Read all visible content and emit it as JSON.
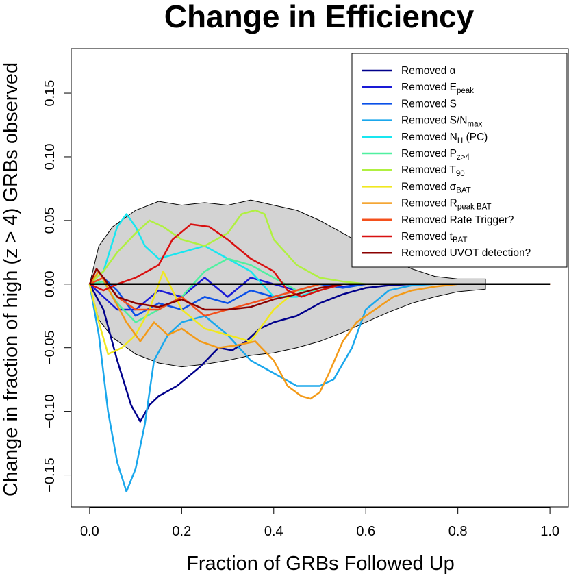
{
  "chart_data": {
    "type": "line",
    "title": "Change in Efficiency",
    "xlabel": "Fraction of GRBs Followed Up",
    "ylabel": "Change in fraction of high (z > 4) GRBs observed",
    "xlim": [
      -0.04,
      1.04
    ],
    "ylim": [
      -0.175,
      0.185
    ],
    "x_ticks": [
      0.0,
      0.2,
      0.4,
      0.6,
      0.8,
      1.0
    ],
    "x_tick_labels": [
      "0.0",
      "0.2",
      "0.4",
      "0.6",
      "0.8",
      "1.0"
    ],
    "y_ticks": [
      -0.15,
      -0.1,
      -0.05,
      0.0,
      0.05,
      0.1,
      0.15
    ],
    "y_tick_labels": [
      "−0.15",
      "−0.10",
      "−0.05",
      "0.00",
      "0.05",
      "0.10",
      "0.15"
    ],
    "grid": false,
    "legend_position": "top-right",
    "band": {
      "color": "#d3d3d3",
      "x": [
        0.0,
        0.02,
        0.05,
        0.1,
        0.15,
        0.2,
        0.25,
        0.3,
        0.35,
        0.4,
        0.45,
        0.5,
        0.55,
        0.6,
        0.65,
        0.7,
        0.75,
        0.8,
        0.86
      ],
      "upper": [
        0.0,
        0.03,
        0.045,
        0.058,
        0.065,
        0.062,
        0.064,
        0.062,
        0.066,
        0.062,
        0.058,
        0.05,
        0.04,
        0.03,
        0.02,
        0.012,
        0.006,
        0.004,
        0.004
      ],
      "lower": [
        0.0,
        -0.028,
        -0.042,
        -0.055,
        -0.062,
        -0.065,
        -0.063,
        -0.06,
        -0.056,
        -0.054,
        -0.05,
        -0.045,
        -0.038,
        -0.03,
        -0.022,
        -0.015,
        -0.01,
        -0.006,
        -0.004
      ]
    },
    "series": [
      {
        "name": "Removed α",
        "color": "#00008b",
        "x": [
          0.0,
          0.03,
          0.06,
          0.09,
          0.11,
          0.13,
          0.15,
          0.19,
          0.24,
          0.28,
          0.31,
          0.34,
          0.37,
          0.4,
          0.45,
          0.5,
          0.55,
          0.6,
          0.65,
          0.7,
          0.8,
          1.0
        ],
        "y": [
          0.0,
          -0.02,
          -0.06,
          -0.095,
          -0.108,
          -0.095,
          -0.088,
          -0.08,
          -0.065,
          -0.05,
          -0.052,
          -0.045,
          -0.035,
          -0.03,
          -0.025,
          -0.015,
          -0.008,
          -0.003,
          -0.001,
          0.0,
          0.0,
          0.0
        ]
      },
      {
        "name": "Removed E",
        "sub": "peak",
        "color": "#1a1ad6",
        "x": [
          0.0,
          0.03,
          0.06,
          0.1,
          0.15,
          0.2,
          0.25,
          0.3,
          0.35,
          0.4,
          0.45,
          0.5,
          0.55,
          0.6,
          0.7,
          0.8,
          1.0
        ],
        "y": [
          0.0,
          -0.01,
          -0.02,
          -0.02,
          -0.005,
          -0.01,
          0.005,
          -0.01,
          0.005,
          0.0,
          -0.005,
          0.0,
          -0.002,
          0.0,
          0.0,
          0.0,
          0.0
        ]
      },
      {
        "name": "Removed S",
        "color": "#0a50e8",
        "x": [
          0.0,
          0.03,
          0.06,
          0.1,
          0.15,
          0.2,
          0.25,
          0.3,
          0.35,
          0.4,
          0.45,
          0.5,
          0.55,
          0.6,
          0.7,
          0.8,
          1.0
        ],
        "y": [
          0.0,
          0.005,
          -0.005,
          -0.025,
          -0.015,
          -0.02,
          -0.01,
          -0.015,
          -0.005,
          -0.01,
          -0.005,
          0.0,
          -0.003,
          0.0,
          0.0,
          0.0,
          0.0
        ]
      },
      {
        "name": "Removed S/N",
        "sub": "max",
        "color": "#1aa7ec",
        "x": [
          0.0,
          0.02,
          0.04,
          0.06,
          0.08,
          0.1,
          0.12,
          0.14,
          0.17,
          0.2,
          0.25,
          0.3,
          0.35,
          0.4,
          0.45,
          0.5,
          0.53,
          0.57,
          0.6,
          0.65,
          0.7,
          0.75,
          1.0
        ],
        "y": [
          0.0,
          -0.04,
          -0.1,
          -0.14,
          -0.163,
          -0.145,
          -0.11,
          -0.06,
          -0.04,
          -0.03,
          -0.025,
          -0.04,
          -0.06,
          -0.07,
          -0.08,
          -0.08,
          -0.075,
          -0.05,
          -0.02,
          -0.005,
          -0.001,
          0.0,
          0.0
        ]
      },
      {
        "name": "Removed N",
        "sub": "H",
        "tail": " (PC)",
        "color": "#18e6f0",
        "x": [
          0.0,
          0.03,
          0.06,
          0.08,
          0.1,
          0.12,
          0.15,
          0.2,
          0.25,
          0.3,
          0.35,
          0.4,
          0.45,
          0.5,
          0.55,
          0.6,
          0.7,
          0.8,
          1.0
        ],
        "y": [
          0.0,
          0.01,
          0.045,
          0.055,
          0.045,
          0.03,
          0.02,
          0.025,
          0.03,
          0.02,
          0.01,
          -0.01,
          -0.01,
          -0.005,
          0.0,
          0.0,
          0.0,
          0.0,
          0.0
        ]
      },
      {
        "name": "Removed P",
        "sub": "z>4",
        "color": "#50f0a0",
        "x": [
          0.0,
          0.03,
          0.06,
          0.1,
          0.15,
          0.2,
          0.25,
          0.3,
          0.35,
          0.4,
          0.45,
          0.5,
          0.55,
          0.6,
          0.7,
          0.8,
          1.0
        ],
        "y": [
          0.0,
          0.002,
          -0.015,
          -0.03,
          -0.02,
          -0.01,
          0.01,
          0.02,
          0.015,
          0.005,
          -0.005,
          -0.005,
          0.0,
          0.0,
          0.0,
          0.0,
          0.0
        ]
      },
      {
        "name": "Removed T",
        "sub": "90",
        "color": "#b0f040",
        "x": [
          0.0,
          0.03,
          0.06,
          0.1,
          0.13,
          0.16,
          0.2,
          0.25,
          0.3,
          0.33,
          0.36,
          0.38,
          0.4,
          0.45,
          0.5,
          0.55,
          0.6,
          0.7,
          0.8,
          1.0
        ],
        "y": [
          0.0,
          0.01,
          0.025,
          0.04,
          0.05,
          0.045,
          0.035,
          0.03,
          0.04,
          0.055,
          0.058,
          0.055,
          0.035,
          0.015,
          0.005,
          0.002,
          0.0,
          0.0,
          0.0,
          0.0
        ]
      },
      {
        "name": "Removed σ",
        "sub": "BAT",
        "color": "#f0e820",
        "x": [
          0.0,
          0.02,
          0.04,
          0.07,
          0.1,
          0.13,
          0.16,
          0.2,
          0.25,
          0.3,
          0.35,
          0.4,
          0.45,
          0.5,
          0.55,
          0.6,
          0.7,
          0.8,
          1.0
        ],
        "y": [
          0.0,
          -0.03,
          -0.055,
          -0.05,
          -0.04,
          -0.02,
          0.01,
          -0.02,
          -0.035,
          -0.04,
          -0.045,
          -0.02,
          -0.005,
          0.0,
          0.0,
          0.0,
          0.0,
          0.0,
          0.0
        ]
      },
      {
        "name": "Removed R",
        "sub": "peak BAT",
        "color": "#f39a18",
        "x": [
          0.0,
          0.02,
          0.05,
          0.08,
          0.11,
          0.14,
          0.17,
          0.2,
          0.24,
          0.28,
          0.32,
          0.36,
          0.4,
          0.43,
          0.46,
          0.48,
          0.5,
          0.52,
          0.55,
          0.58,
          0.62,
          0.66,
          0.7,
          0.75,
          0.8,
          1.0
        ],
        "y": [
          0.0,
          0.01,
          -0.01,
          -0.03,
          -0.045,
          -0.03,
          -0.04,
          -0.035,
          -0.045,
          -0.05,
          -0.048,
          -0.045,
          -0.06,
          -0.08,
          -0.088,
          -0.09,
          -0.085,
          -0.07,
          -0.045,
          -0.03,
          -0.02,
          -0.01,
          -0.005,
          -0.002,
          0.0,
          0.0
        ]
      },
      {
        "name": "Removed Rate Trigger?",
        "color": "#f4501c",
        "x": [
          0.0,
          0.03,
          0.06,
          0.1,
          0.15,
          0.2,
          0.25,
          0.3,
          0.35,
          0.4,
          0.45,
          0.5,
          0.55,
          0.6,
          0.7,
          0.8,
          1.0
        ],
        "y": [
          0.0,
          0.005,
          -0.01,
          -0.02,
          -0.02,
          -0.01,
          -0.025,
          -0.02,
          -0.015,
          -0.01,
          -0.005,
          0.0,
          0.0,
          0.0,
          0.0,
          0.0,
          0.0
        ]
      },
      {
        "name": "Removed t",
        "sub": "BAT",
        "color": "#d81010",
        "x": [
          0.0,
          0.03,
          0.06,
          0.1,
          0.15,
          0.18,
          0.22,
          0.26,
          0.3,
          0.35,
          0.4,
          0.43,
          0.46,
          0.5,
          0.55,
          0.6,
          0.7,
          0.8,
          1.0
        ],
        "y": [
          0.0,
          -0.005,
          0.0,
          0.005,
          0.015,
          0.035,
          0.047,
          0.045,
          0.035,
          0.02,
          0.01,
          -0.005,
          -0.01,
          -0.005,
          0.0,
          0.0,
          0.0,
          0.0,
          0.0
        ]
      },
      {
        "name": "Removed UVOT detection?",
        "color": "#8b0000",
        "x": [
          0.0,
          0.015,
          0.03,
          0.06,
          0.1,
          0.15,
          0.2,
          0.25,
          0.3,
          0.35,
          0.4,
          0.45,
          0.5,
          0.55,
          0.6,
          0.7,
          0.8,
          1.0
        ],
        "y": [
          0.0,
          0.012,
          0.005,
          -0.01,
          -0.015,
          -0.018,
          -0.012,
          -0.02,
          -0.02,
          -0.018,
          -0.012,
          -0.008,
          -0.003,
          0.0,
          0.0,
          0.0,
          0.0,
          0.0
        ]
      }
    ],
    "reference_line": {
      "y": 0.0,
      "x": [
        0.0,
        1.0
      ],
      "color": "#000000"
    }
  }
}
